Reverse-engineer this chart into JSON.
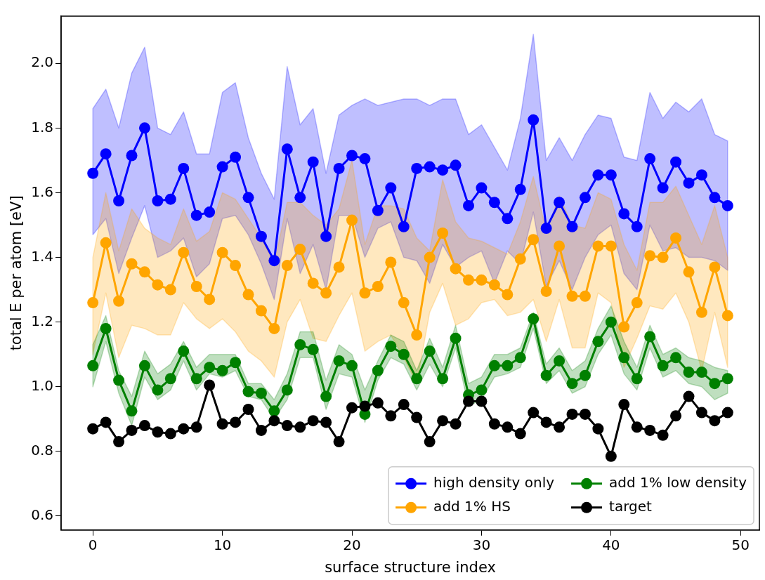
{
  "chart_data": {
    "type": "line",
    "xlabel": "surface structure index",
    "ylabel": "total E per atom [eV]",
    "xlim": [
      -2.45,
      51.45
    ],
    "ylim": [
      0.557,
      2.146
    ],
    "xticks": [
      0,
      10,
      20,
      30,
      40,
      50
    ],
    "yticks": [
      0.6,
      0.8,
      {
        "value": 1,
        "label": "1.0"
      },
      1.2,
      1.4,
      1.6,
      1.8,
      {
        "value": 2,
        "label": "2.0"
      }
    ],
    "grid": false,
    "legend": "bottom right",
    "marker": "circle",
    "line_style": "solid",
    "x": [
      0,
      1,
      2,
      3,
      4,
      5,
      6,
      7,
      8,
      9,
      10,
      11,
      12,
      13,
      14,
      15,
      16,
      17,
      18,
      19,
      20,
      21,
      22,
      23,
      24,
      25,
      26,
      27,
      28,
      29,
      30,
      31,
      32,
      33,
      34,
      35,
      36,
      37,
      38,
      39,
      40,
      41,
      42,
      43,
      44,
      45,
      46,
      47,
      48,
      49
    ],
    "series": [
      {
        "name": "high density only",
        "color": "#0000ff",
        "values": [
          1.66,
          1.72,
          1.575,
          1.715,
          1.8,
          1.575,
          1.58,
          1.675,
          1.53,
          1.54,
          1.68,
          1.71,
          1.585,
          1.465,
          1.39,
          1.735,
          1.585,
          1.695,
          1.465,
          1.675,
          1.715,
          1.705,
          1.545,
          1.615,
          1.495,
          1.675,
          1.68,
          1.67,
          1.685,
          1.56,
          1.615,
          1.57,
          1.52,
          1.61,
          1.825,
          1.49,
          1.57,
          1.495,
          1.585,
          1.655,
          1.655,
          1.535,
          1.495,
          1.705,
          1.615,
          1.695,
          1.63,
          1.655,
          1.585,
          1.56
        ],
        "lower": [
          1.47,
          1.52,
          1.35,
          1.46,
          1.56,
          1.4,
          1.42,
          1.46,
          1.34,
          1.38,
          1.52,
          1.53,
          1.47,
          1.38,
          1.27,
          1.52,
          1.35,
          1.44,
          1.3,
          1.53,
          1.53,
          1.4,
          1.49,
          1.51,
          1.4,
          1.39,
          1.32,
          1.44,
          1.37,
          1.4,
          1.42,
          1.32,
          1.42,
          1.38,
          1.54,
          1.31,
          1.39,
          1.3,
          1.4,
          1.47,
          1.5,
          1.35,
          1.3,
          1.5,
          1.42,
          1.43,
          1.4,
          1.4,
          1.39,
          1.36
        ],
        "upper": [
          1.86,
          1.92,
          1.8,
          1.97,
          2.05,
          1.8,
          1.78,
          1.85,
          1.72,
          1.72,
          1.91,
          1.94,
          1.77,
          1.66,
          1.58,
          1.99,
          1.81,
          1.86,
          1.66,
          1.84,
          1.87,
          1.89,
          1.87,
          1.88,
          1.89,
          1.89,
          1.87,
          1.89,
          1.89,
          1.78,
          1.81,
          1.74,
          1.67,
          1.83,
          2.09,
          1.7,
          1.77,
          1.7,
          1.78,
          1.84,
          1.83,
          1.71,
          1.7,
          1.91,
          1.83,
          1.88,
          1.85,
          1.89,
          1.78,
          1.76
        ]
      },
      {
        "name": "add 1% HS",
        "color": "#ffa500",
        "values": [
          1.26,
          1.445,
          1.265,
          1.38,
          1.355,
          1.315,
          1.3,
          1.415,
          1.31,
          1.27,
          1.415,
          1.375,
          1.285,
          1.235,
          1.18,
          1.375,
          1.425,
          1.32,
          1.29,
          1.37,
          1.515,
          1.29,
          1.31,
          1.385,
          1.26,
          1.16,
          1.4,
          1.475,
          1.365,
          1.33,
          1.33,
          1.315,
          1.285,
          1.395,
          1.455,
          1.295,
          1.435,
          1.28,
          1.28,
          1.435,
          1.435,
          1.185,
          1.26,
          1.405,
          1.4,
          1.46,
          1.355,
          1.23,
          1.37,
          1.22
        ],
        "lower": [
          1.1,
          1.29,
          1.09,
          1.19,
          1.18,
          1.16,
          1.16,
          1.26,
          1.21,
          1.18,
          1.21,
          1.17,
          1.11,
          1.08,
          1.03,
          1.2,
          1.27,
          1.15,
          1.14,
          1.22,
          1.29,
          1.11,
          1.14,
          1.16,
          1.09,
          1.01,
          1.23,
          1.32,
          1.19,
          1.21,
          1.26,
          1.27,
          1.22,
          1.23,
          1.27,
          1.14,
          1.27,
          1.12,
          1.12,
          1.29,
          1.26,
          1.06,
          1.15,
          1.25,
          1.24,
          1.29,
          1.2,
          1.05,
          1.23,
          1.06
        ],
        "upper": [
          1.4,
          1.6,
          1.42,
          1.55,
          1.49,
          1.46,
          1.44,
          1.55,
          1.45,
          1.48,
          1.6,
          1.58,
          1.52,
          1.46,
          1.38,
          1.57,
          1.57,
          1.53,
          1.5,
          1.55,
          1.7,
          1.44,
          1.56,
          1.56,
          1.55,
          1.46,
          1.42,
          1.64,
          1.51,
          1.46,
          1.45,
          1.43,
          1.41,
          1.51,
          1.65,
          1.48,
          1.59,
          1.5,
          1.49,
          1.6,
          1.58,
          1.44,
          1.36,
          1.57,
          1.57,
          1.62,
          1.53,
          1.44,
          1.56,
          1.4
        ]
      },
      {
        "name": "add 1% low density",
        "color": "#008000",
        "values": [
          1.065,
          1.18,
          1.02,
          0.925,
          1.065,
          0.99,
          1.025,
          1.11,
          1.025,
          1.06,
          1.05,
          1.075,
          0.985,
          0.98,
          0.925,
          0.99,
          1.13,
          1.115,
          0.97,
          1.08,
          1.065,
          0.915,
          1.05,
          1.125,
          1.1,
          1.025,
          1.11,
          1.025,
          1.15,
          0.975,
          0.99,
          1.065,
          1.065,
          1.09,
          1.21,
          1.035,
          1.08,
          1.01,
          1.035,
          1.14,
          1.2,
          1.09,
          1.025,
          1.155,
          1.065,
          1.09,
          1.045,
          1.045,
          1.01,
          1.025
        ],
        "lower": [
          1.0,
          1.14,
          0.98,
          0.88,
          1.03,
          0.96,
          0.99,
          1.08,
          0.99,
          1.04,
          1.03,
          1.05,
          0.97,
          0.96,
          0.9,
          0.96,
          1.09,
          1.09,
          0.93,
          1.04,
          1.03,
          0.89,
          1.02,
          1.09,
          1.07,
          0.99,
          1.07,
          1.0,
          1.12,
          0.94,
          0.96,
          1.03,
          1.04,
          1.06,
          1.18,
          1.01,
          1.05,
          0.98,
          1.0,
          1.1,
          1.16,
          1.04,
          0.99,
          1.12,
          1.03,
          1.05,
          1.01,
          1.0,
          0.96,
          0.98
        ],
        "upper": [
          1.13,
          1.22,
          1.05,
          0.97,
          1.11,
          1.04,
          1.07,
          1.14,
          1.06,
          1.1,
          1.1,
          1.1,
          1.01,
          1.01,
          0.96,
          1.04,
          1.17,
          1.17,
          1.02,
          1.13,
          1.1,
          0.99,
          1.08,
          1.16,
          1.14,
          1.05,
          1.15,
          1.06,
          1.19,
          1.01,
          1.03,
          1.1,
          1.1,
          1.12,
          1.23,
          1.07,
          1.12,
          1.05,
          1.08,
          1.18,
          1.25,
          1.14,
          1.06,
          1.19,
          1.1,
          1.12,
          1.09,
          1.08,
          1.06,
          1.05
        ]
      },
      {
        "name": "target",
        "color": "#000000",
        "values": [
          0.87,
          0.89,
          0.83,
          0.865,
          0.88,
          0.86,
          0.855,
          0.87,
          0.875,
          1.005,
          0.885,
          0.89,
          0.93,
          0.865,
          0.895,
          0.88,
          0.875,
          0.895,
          0.89,
          0.83,
          0.935,
          0.94,
          0.95,
          0.91,
          0.945,
          0.905,
          0.83,
          0.895,
          0.885,
          0.955,
          0.955,
          0.885,
          0.875,
          0.855,
          0.92,
          0.89,
          0.875,
          0.915,
          0.915,
          0.87,
          0.785,
          0.945,
          0.875,
          0.865,
          0.85,
          0.91,
          0.97,
          0.92,
          0.895,
          0.92
        ]
      }
    ]
  }
}
